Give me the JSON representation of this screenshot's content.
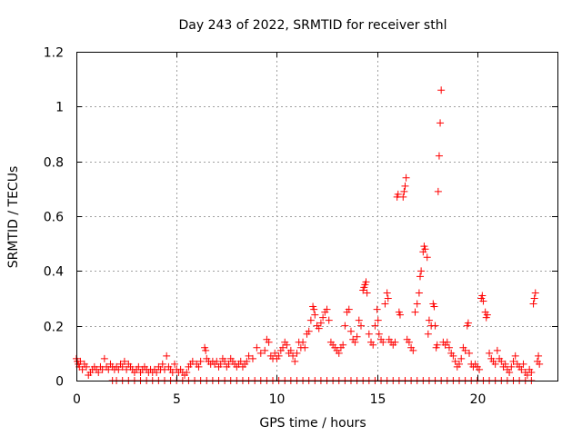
{
  "chart_data": {
    "type": "scatter",
    "title": "Day 243 of 2022, SRMTID for receiver sthl",
    "xlabel": "GPS time / hours",
    "ylabel": "SRMTID / TECUs",
    "xlim": [
      0,
      24
    ],
    "ylim": [
      0,
      1.2
    ],
    "xticks": [
      0,
      5,
      10,
      15,
      20
    ],
    "xtick_labels": [
      "0",
      "5",
      "10",
      "15",
      "20"
    ],
    "yticks": [
      0,
      0.2,
      0.4,
      0.6,
      0.8,
      1.0,
      1.2
    ],
    "ytick_labels": [
      "0",
      "0.2",
      "0.4",
      "0.6",
      "0.8",
      "1",
      "1.2"
    ],
    "grid": true,
    "marker": "+",
    "color": "#ff0000",
    "series": [
      {
        "name": "SRMTID",
        "points": [
          [
            0.0,
            0.08
          ],
          [
            0.05,
            0.07
          ],
          [
            0.1,
            0.06
          ],
          [
            0.15,
            0.05
          ],
          [
            0.2,
            0.07
          ],
          [
            0.3,
            0.04
          ],
          [
            0.4,
            0.06
          ],
          [
            0.5,
            0.05
          ],
          [
            0.6,
            0.02
          ],
          [
            0.7,
            0.03
          ],
          [
            0.8,
            0.04
          ],
          [
            0.9,
            0.05
          ],
          [
            1.0,
            0.04
          ],
          [
            1.1,
            0.03
          ],
          [
            1.2,
            0.05
          ],
          [
            1.3,
            0.04
          ],
          [
            1.4,
            0.08
          ],
          [
            1.5,
            0.05
          ],
          [
            1.6,
            0.04
          ],
          [
            1.7,
            0.06
          ],
          [
            1.8,
            0.05
          ],
          [
            1.9,
            0.04
          ],
          [
            2.0,
            0.05
          ],
          [
            2.1,
            0.04
          ],
          [
            2.2,
            0.06
          ],
          [
            2.3,
            0.05
          ],
          [
            2.4,
            0.07
          ],
          [
            2.5,
            0.04
          ],
          [
            2.6,
            0.06
          ],
          [
            2.7,
            0.05
          ],
          [
            2.8,
            0.04
          ],
          [
            2.9,
            0.03
          ],
          [
            3.0,
            0.04
          ],
          [
            3.1,
            0.05
          ],
          [
            3.2,
            0.03
          ],
          [
            3.3,
            0.04
          ],
          [
            3.4,
            0.05
          ],
          [
            3.5,
            0.04
          ],
          [
            3.6,
            0.03
          ],
          [
            3.7,
            0.04
          ],
          [
            3.8,
            0.03
          ],
          [
            3.9,
            0.04
          ],
          [
            4.0,
            0.03
          ],
          [
            4.1,
            0.05
          ],
          [
            4.2,
            0.04
          ],
          [
            4.3,
            0.06
          ],
          [
            4.4,
            0.04
          ],
          [
            4.5,
            0.09
          ],
          [
            4.6,
            0.05
          ],
          [
            4.7,
            0.04
          ],
          [
            4.8,
            0.03
          ],
          [
            4.9,
            0.06
          ],
          [
            5.0,
            0.04
          ],
          [
            5.1,
            0.03
          ],
          [
            5.2,
            0.04
          ],
          [
            5.3,
            0.03
          ],
          [
            5.4,
            0.02
          ],
          [
            5.5,
            0.03
          ],
          [
            5.6,
            0.05
          ],
          [
            5.7,
            0.06
          ],
          [
            5.8,
            0.07
          ],
          [
            6.0,
            0.06
          ],
          [
            6.1,
            0.05
          ],
          [
            6.2,
            0.07
          ],
          [
            6.4,
            0.12
          ],
          [
            6.45,
            0.11
          ],
          [
            6.5,
            0.08
          ],
          [
            6.6,
            0.07
          ],
          [
            6.7,
            0.06
          ],
          [
            6.8,
            0.07
          ],
          [
            6.9,
            0.06
          ],
          [
            7.0,
            0.07
          ],
          [
            7.1,
            0.05
          ],
          [
            7.2,
            0.06
          ],
          [
            7.3,
            0.08
          ],
          [
            7.4,
            0.07
          ],
          [
            7.5,
            0.05
          ],
          [
            7.6,
            0.06
          ],
          [
            7.7,
            0.08
          ],
          [
            7.8,
            0.07
          ],
          [
            7.9,
            0.06
          ],
          [
            8.0,
            0.05
          ],
          [
            8.1,
            0.06
          ],
          [
            8.2,
            0.07
          ],
          [
            8.3,
            0.05
          ],
          [
            8.4,
            0.06
          ],
          [
            8.5,
            0.07
          ],
          [
            8.6,
            0.09
          ],
          [
            8.8,
            0.08
          ],
          [
            9.0,
            0.12
          ],
          [
            9.2,
            0.1
          ],
          [
            9.4,
            0.11
          ],
          [
            9.5,
            0.15
          ],
          [
            9.6,
            0.14
          ],
          [
            9.7,
            0.09
          ],
          [
            9.8,
            0.08
          ],
          [
            9.9,
            0.1
          ],
          [
            10.0,
            0.08
          ],
          [
            10.1,
            0.09
          ],
          [
            10.2,
            0.11
          ],
          [
            10.3,
            0.12
          ],
          [
            10.4,
            0.14
          ],
          [
            10.5,
            0.13
          ],
          [
            10.6,
            0.1
          ],
          [
            10.7,
            0.11
          ],
          [
            10.8,
            0.09
          ],
          [
            10.9,
            0.07
          ],
          [
            11.0,
            0.1
          ],
          [
            11.1,
            0.14
          ],
          [
            11.2,
            0.12
          ],
          [
            11.3,
            0.14
          ],
          [
            11.4,
            0.12
          ],
          [
            11.5,
            0.17
          ],
          [
            11.6,
            0.18
          ],
          [
            11.7,
            0.22
          ],
          [
            11.8,
            0.27
          ],
          [
            11.85,
            0.26
          ],
          [
            11.9,
            0.24
          ],
          [
            12.0,
            0.2
          ],
          [
            12.1,
            0.19
          ],
          [
            12.2,
            0.21
          ],
          [
            12.3,
            0.23
          ],
          [
            12.4,
            0.25
          ],
          [
            12.5,
            0.26
          ],
          [
            12.6,
            0.22
          ],
          [
            12.7,
            0.14
          ],
          [
            12.8,
            0.13
          ],
          [
            12.9,
            0.12
          ],
          [
            13.0,
            0.11
          ],
          [
            13.1,
            0.1
          ],
          [
            13.2,
            0.12
          ],
          [
            13.3,
            0.13
          ],
          [
            13.4,
            0.2
          ],
          [
            13.5,
            0.25
          ],
          [
            13.6,
            0.26
          ],
          [
            13.7,
            0.18
          ],
          [
            13.8,
            0.15
          ],
          [
            13.9,
            0.14
          ],
          [
            14.0,
            0.16
          ],
          [
            14.1,
            0.22
          ],
          [
            14.2,
            0.2
          ],
          [
            14.3,
            0.33
          ],
          [
            14.35,
            0.34
          ],
          [
            14.4,
            0.35
          ],
          [
            14.45,
            0.36
          ],
          [
            14.5,
            0.32
          ],
          [
            14.6,
            0.17
          ],
          [
            14.7,
            0.14
          ],
          [
            14.8,
            0.13
          ],
          [
            14.9,
            0.2
          ],
          [
            15.0,
            0.26
          ],
          [
            15.05,
            0.22
          ],
          [
            15.1,
            0.17
          ],
          [
            15.2,
            0.15
          ],
          [
            15.3,
            0.14
          ],
          [
            15.4,
            0.28
          ],
          [
            15.5,
            0.32
          ],
          [
            15.55,
            0.3
          ],
          [
            15.6,
            0.15
          ],
          [
            15.7,
            0.14
          ],
          [
            15.8,
            0.13
          ],
          [
            15.9,
            0.14
          ],
          [
            16.0,
            0.67
          ],
          [
            16.05,
            0.68
          ],
          [
            16.1,
            0.25
          ],
          [
            16.15,
            0.24
          ],
          [
            16.3,
            0.67
          ],
          [
            16.35,
            0.69
          ],
          [
            16.4,
            0.71
          ],
          [
            16.45,
            0.74
          ],
          [
            16.5,
            0.15
          ],
          [
            16.6,
            0.14
          ],
          [
            16.7,
            0.12
          ],
          [
            16.8,
            0.11
          ],
          [
            16.9,
            0.25
          ],
          [
            17.0,
            0.28
          ],
          [
            17.1,
            0.32
          ],
          [
            17.15,
            0.38
          ],
          [
            17.2,
            0.4
          ],
          [
            17.3,
            0.47
          ],
          [
            17.35,
            0.49
          ],
          [
            17.4,
            0.48
          ],
          [
            17.5,
            0.45
          ],
          [
            17.55,
            0.17
          ],
          [
            17.6,
            0.22
          ],
          [
            17.7,
            0.2
          ],
          [
            17.8,
            0.28
          ],
          [
            17.85,
            0.27
          ],
          [
            17.9,
            0.2
          ],
          [
            17.95,
            0.12
          ],
          [
            18.0,
            0.13
          ],
          [
            18.05,
            0.69
          ],
          [
            18.1,
            0.82
          ],
          [
            18.15,
            0.94
          ],
          [
            18.2,
            1.06
          ],
          [
            18.3,
            0.14
          ],
          [
            18.4,
            0.13
          ],
          [
            18.5,
            0.14
          ],
          [
            18.6,
            0.12
          ],
          [
            18.7,
            0.1
          ],
          [
            18.8,
            0.09
          ],
          [
            18.9,
            0.07
          ],
          [
            19.0,
            0.05
          ],
          [
            19.1,
            0.06
          ],
          [
            19.2,
            0.08
          ],
          [
            19.3,
            0.12
          ],
          [
            19.4,
            0.11
          ],
          [
            19.5,
            0.2
          ],
          [
            19.55,
            0.21
          ],
          [
            19.6,
            0.1
          ],
          [
            19.7,
            0.06
          ],
          [
            19.8,
            0.05
          ],
          [
            19.9,
            0.06
          ],
          [
            20.0,
            0.05
          ],
          [
            20.1,
            0.04
          ],
          [
            20.2,
            0.3
          ],
          [
            20.25,
            0.31
          ],
          [
            20.3,
            0.29
          ],
          [
            20.4,
            0.25
          ],
          [
            20.45,
            0.23
          ],
          [
            20.5,
            0.24
          ],
          [
            20.6,
            0.1
          ],
          [
            20.7,
            0.08
          ],
          [
            20.8,
            0.07
          ],
          [
            20.9,
            0.06
          ],
          [
            21.0,
            0.11
          ],
          [
            21.1,
            0.08
          ],
          [
            21.2,
            0.07
          ],
          [
            21.3,
            0.05
          ],
          [
            21.4,
            0.06
          ],
          [
            21.5,
            0.04
          ],
          [
            21.6,
            0.03
          ],
          [
            21.7,
            0.05
          ],
          [
            21.8,
            0.07
          ],
          [
            21.9,
            0.09
          ],
          [
            22.0,
            0.06
          ],
          [
            22.1,
            0.05
          ],
          [
            22.2,
            0.04
          ],
          [
            22.3,
            0.06
          ],
          [
            22.4,
            0.03
          ],
          [
            22.5,
            0.02
          ],
          [
            22.6,
            0.04
          ],
          [
            22.7,
            0.03
          ],
          [
            22.8,
            0.28
          ],
          [
            22.85,
            0.3
          ],
          [
            22.9,
            0.32
          ],
          [
            23.0,
            0.07
          ],
          [
            23.05,
            0.09
          ],
          [
            23.1,
            0.06
          ]
        ],
        "zero_points": [
          [
            1.8,
            0
          ],
          [
            2.0,
            0
          ],
          [
            2.3,
            0
          ],
          [
            2.6,
            0
          ],
          [
            2.9,
            0
          ],
          [
            3.2,
            0
          ],
          [
            3.5,
            0
          ],
          [
            3.8,
            0
          ],
          [
            4.1,
            0
          ],
          [
            4.4,
            0
          ],
          [
            4.7,
            0
          ],
          [
            5.0,
            0
          ],
          [
            5.3,
            0
          ],
          [
            5.6,
            0
          ],
          [
            5.9,
            0
          ],
          [
            6.2,
            0
          ],
          [
            6.5,
            0
          ],
          [
            6.8,
            0
          ],
          [
            7.1,
            0
          ],
          [
            7.4,
            0
          ],
          [
            7.7,
            0
          ],
          [
            8.0,
            0
          ],
          [
            8.3,
            0
          ],
          [
            8.6,
            0
          ],
          [
            8.9,
            0
          ],
          [
            9.2,
            0
          ],
          [
            9.5,
            0
          ],
          [
            9.8,
            0
          ],
          [
            10.1,
            0
          ],
          [
            10.4,
            0
          ],
          [
            10.7,
            0
          ],
          [
            11.0,
            0
          ],
          [
            11.3,
            0
          ],
          [
            11.6,
            0
          ],
          [
            11.9,
            0
          ],
          [
            12.2,
            0
          ],
          [
            12.5,
            0
          ],
          [
            12.8,
            0
          ],
          [
            13.1,
            0
          ],
          [
            13.4,
            0
          ],
          [
            13.7,
            0
          ],
          [
            14.0,
            0
          ],
          [
            14.3,
            0
          ],
          [
            14.6,
            0
          ],
          [
            14.9,
            0
          ],
          [
            15.2,
            0
          ],
          [
            15.5,
            0
          ],
          [
            15.8,
            0
          ],
          [
            16.1,
            0
          ],
          [
            16.4,
            0
          ],
          [
            16.7,
            0
          ],
          [
            17.0,
            0
          ],
          [
            17.3,
            0
          ],
          [
            17.6,
            0
          ],
          [
            17.9,
            0
          ],
          [
            18.2,
            0
          ],
          [
            18.5,
            0
          ],
          [
            18.8,
            0
          ],
          [
            19.1,
            0
          ],
          [
            19.4,
            0
          ],
          [
            19.7,
            0
          ],
          [
            20.0,
            0
          ],
          [
            20.3,
            0
          ],
          [
            20.6,
            0
          ],
          [
            20.9,
            0
          ],
          [
            21.2,
            0
          ],
          [
            21.5,
            0
          ],
          [
            21.8,
            0
          ],
          [
            22.1,
            0
          ],
          [
            22.4,
            0
          ],
          [
            22.7,
            0
          ]
        ]
      }
    ]
  }
}
